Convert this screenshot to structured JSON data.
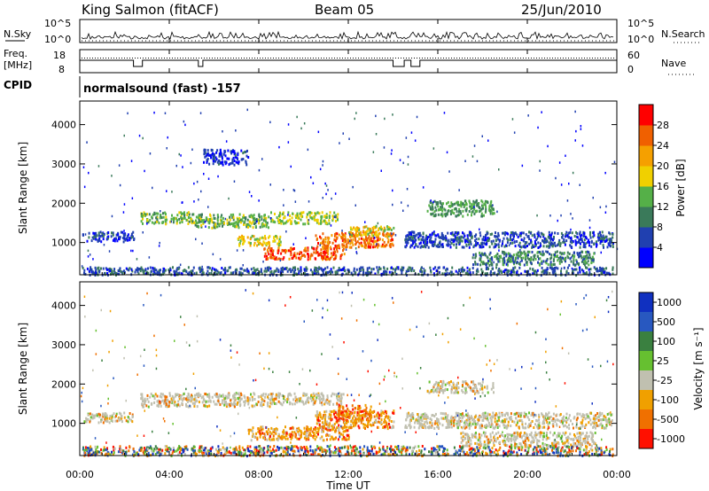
{
  "header": {
    "station": "King Salmon (fitACF)",
    "beam": "Beam 05",
    "date": "25/Jun/2010"
  },
  "panels": {
    "nsky_label": "N.Sky",
    "nsky_ticks": [
      "10^5",
      "10^0"
    ],
    "nsearch_label": "N.Search",
    "nsearch_ticks": [
      "10^5",
      "10^0"
    ],
    "freq_label": "Freq.",
    "freq_unit": "[MHz]",
    "freq_ticks": [
      "18",
      "8"
    ],
    "nave_label": "Nave",
    "nave_ticks": [
      "60",
      "0"
    ],
    "cpid_label": "CPID",
    "cpid_text": "normalsound (fast) -157"
  },
  "colors": {
    "power_scale": [
      "#0000ff",
      "#2040b0",
      "#3a7a5a",
      "#55b048",
      "#f0d000",
      "#f5a000",
      "#f06000",
      "#ff0000"
    ],
    "velocity_scale": [
      "#1030c0",
      "#2858c0",
      "#3a8040",
      "#66c030",
      "#c0c0b0",
      "#f0a000",
      "#f07000",
      "#ff1000"
    ]
  },
  "chart_data": [
    {
      "type": "heatmap",
      "title": "",
      "xlabel": "Time UT",
      "ylabel": "Slant Range [km]",
      "x_ticks": [
        "00:00",
        "04:00",
        "08:00",
        "12:00",
        "16:00",
        "20:00",
        "00:00"
      ],
      "y_ticks": [
        1000,
        2000,
        3000,
        4000
      ],
      "ylim": [
        180,
        4600
      ],
      "xlim_hours": [
        0,
        24
      ],
      "colorbar_label": "Power [dB]",
      "colorbar_ticks": [
        4,
        8,
        12,
        16,
        20,
        24,
        28
      ],
      "colorbar_range": [
        0,
        32
      ],
      "regions": [
        {
          "t0": 0.1,
          "t1": 2.4,
          "r0": 1050,
          "r1": 1300,
          "level": 5
        },
        {
          "t0": 2.7,
          "t1": 5.0,
          "r0": 1500,
          "r1": 1800,
          "level": 14
        },
        {
          "t0": 5.0,
          "t1": 8.5,
          "r0": 1400,
          "r1": 1750,
          "level": 14
        },
        {
          "t0": 8.5,
          "t1": 11.5,
          "r0": 1500,
          "r1": 1800,
          "level": 16
        },
        {
          "t0": 7.0,
          "t1": 9.0,
          "r0": 950,
          "r1": 1200,
          "level": 18
        },
        {
          "t0": 8.2,
          "t1": 11.8,
          "r0": 600,
          "r1": 900,
          "level": 27
        },
        {
          "t0": 10.5,
          "t1": 14.0,
          "r0": 900,
          "r1": 1300,
          "level": 25
        },
        {
          "t0": 12.0,
          "t1": 14.0,
          "r0": 1200,
          "r1": 1450,
          "level": 18
        },
        {
          "t0": 15.5,
          "t1": 18.5,
          "r0": 1700,
          "r1": 2100,
          "level": 12
        },
        {
          "t0": 14.5,
          "t1": 23.8,
          "r0": 900,
          "r1": 1300,
          "level": 6
        },
        {
          "t0": 17.5,
          "t1": 23.0,
          "r0": 450,
          "r1": 800,
          "level": 10
        },
        {
          "t0": 5.5,
          "t1": 7.5,
          "r0": 3000,
          "r1": 3400,
          "level": 5
        },
        {
          "t0": 0.1,
          "t1": 23.8,
          "r0": 200,
          "r1": 400,
          "level": 7
        }
      ]
    },
    {
      "type": "heatmap",
      "title": "",
      "xlabel": "Time UT",
      "ylabel": "Slant Range [km]",
      "x_ticks": [
        "00:00",
        "04:00",
        "08:00",
        "12:00",
        "16:00",
        "20:00",
        "00:00"
      ],
      "y_ticks": [
        1000,
        2000,
        3000,
        4000
      ],
      "ylim": [
        180,
        4600
      ],
      "xlim_hours": [
        0,
        24
      ],
      "colorbar_label": "Velocity [m s⁻¹]",
      "colorbar_ticks": [
        1000,
        500,
        100,
        25,
        -25,
        -100,
        -500,
        -1000
      ],
      "regions": [
        {
          "t0": 0.1,
          "t1": 2.4,
          "r0": 1050,
          "r1": 1300,
          "level": "grey"
        },
        {
          "t0": 2.7,
          "t1": 8.5,
          "r0": 1450,
          "r1": 1800,
          "level": "grey"
        },
        {
          "t0": 8.5,
          "t1": 11.8,
          "r0": 1500,
          "r1": 1800,
          "level": "grey"
        },
        {
          "t0": 7.5,
          "t1": 12.0,
          "r0": 600,
          "r1": 950,
          "level": "orange"
        },
        {
          "t0": 10.5,
          "t1": 14.0,
          "r0": 900,
          "r1": 1350,
          "level": "orange"
        },
        {
          "t0": 11.5,
          "t1": 13.0,
          "r0": 1100,
          "r1": 1500,
          "level": "red"
        },
        {
          "t0": 14.5,
          "t1": 23.8,
          "r0": 900,
          "r1": 1300,
          "level": "grey"
        },
        {
          "t0": 15.5,
          "t1": 18.5,
          "r0": 1800,
          "r1": 2100,
          "level": "grey"
        },
        {
          "t0": 17.0,
          "t1": 23.0,
          "r0": 450,
          "r1": 800,
          "level": "grey"
        },
        {
          "t0": 0.1,
          "t1": 23.8,
          "r0": 200,
          "r1": 450,
          "level": "mixed"
        }
      ]
    }
  ]
}
